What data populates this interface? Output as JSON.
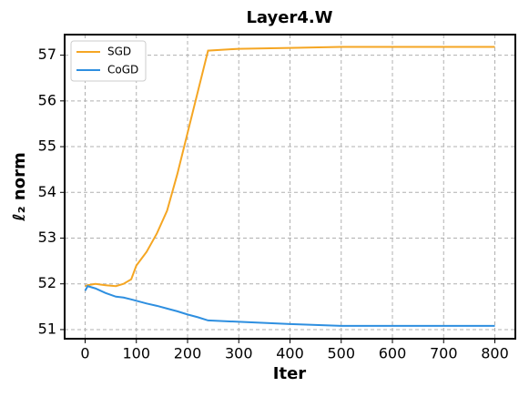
{
  "chart_data": {
    "type": "line",
    "title": "Layer4.W",
    "xlabel": "Iter",
    "ylabel": "ℓ₂ norm",
    "x": [
      0,
      5,
      20,
      40,
      60,
      75,
      90,
      100,
      120,
      140,
      160,
      180,
      200,
      220,
      240,
      300,
      400,
      500,
      600,
      700,
      800
    ],
    "series": [
      {
        "name": "SGD",
        "color": "#f5a623",
        "values": [
          51.95,
          51.97,
          52.0,
          51.97,
          51.95,
          52.0,
          52.1,
          52.4,
          52.7,
          53.1,
          53.6,
          54.4,
          55.3,
          56.2,
          57.1,
          57.14,
          57.16,
          57.18,
          57.18,
          57.18,
          57.18
        ]
      },
      {
        "name": "CoGD",
        "color": "#2e8fe0",
        "values": [
          51.85,
          51.95,
          51.9,
          51.8,
          51.72,
          51.7,
          51.66,
          51.63,
          51.57,
          51.52,
          51.46,
          51.4,
          51.33,
          51.27,
          51.2,
          51.17,
          51.12,
          51.08,
          51.08,
          51.08,
          51.08
        ]
      }
    ],
    "xlim": [
      -40,
      840
    ],
    "xticks": [
      0,
      100,
      200,
      300,
      400,
      500,
      600,
      700,
      800
    ],
    "ylim": [
      50.8,
      57.45
    ],
    "yticks": [
      51,
      52,
      53,
      54,
      55,
      56,
      57
    ],
    "grid": true,
    "legend": "upper-left"
  }
}
